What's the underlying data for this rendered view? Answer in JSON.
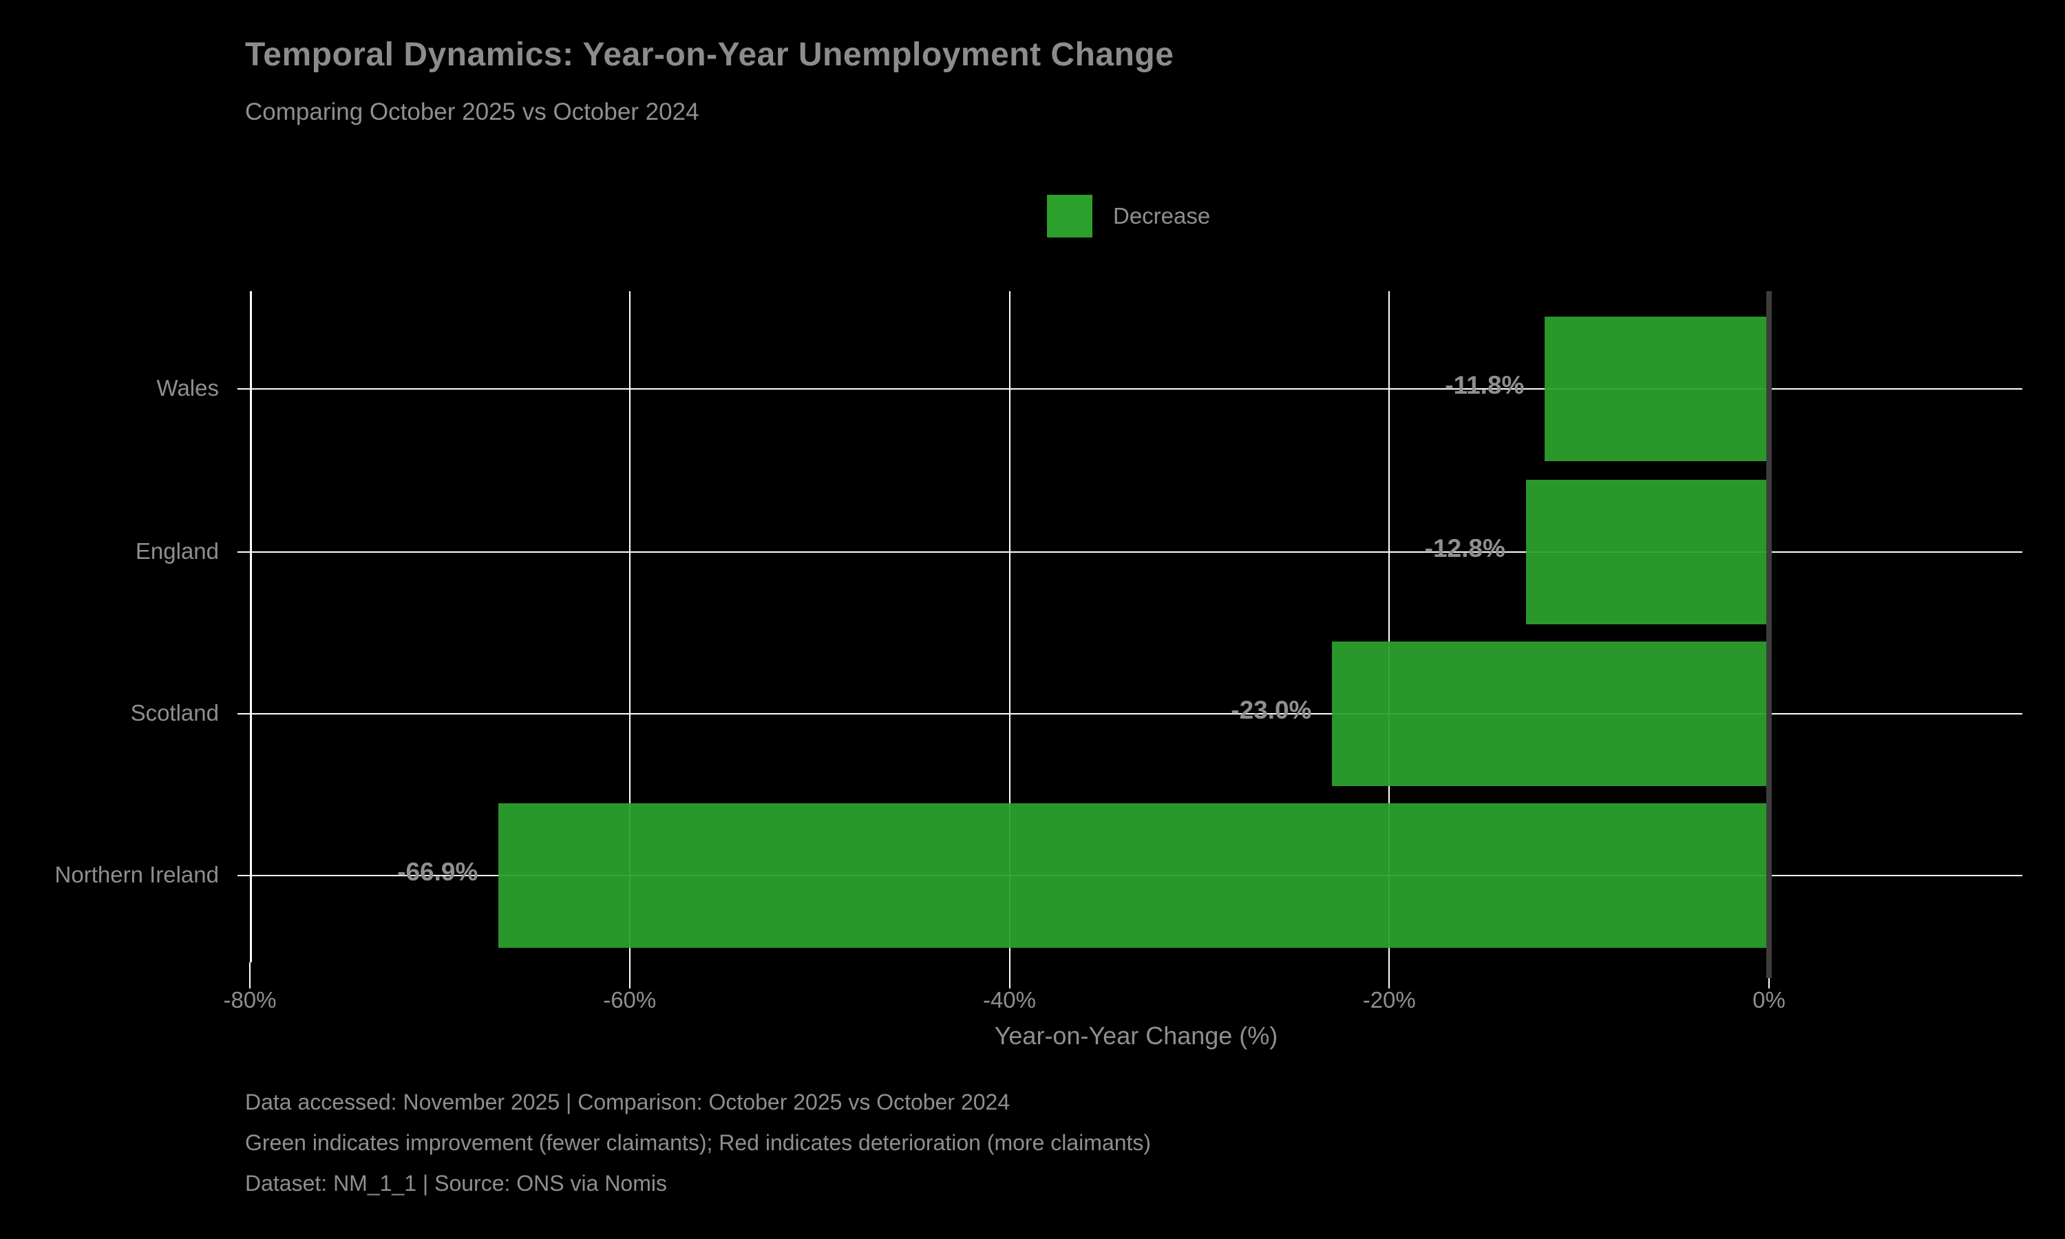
{
  "title": "Temporal Dynamics: Year-on-Year Unemployment Change",
  "subtitle": "Comparing October 2025 vs October 2024",
  "legend": {
    "label": "Decrease",
    "swatch_color": "#2ca02c"
  },
  "chart_data": {
    "type": "bar",
    "orientation": "horizontal",
    "categories": [
      "Wales",
      "England",
      "Scotland",
      "Northern Ireland"
    ],
    "values": [
      -11.8,
      -12.8,
      -23.0,
      -66.9
    ],
    "value_labels": [
      "-11.8%",
      "-12.8%",
      "-23.0%",
      "-66.9%"
    ],
    "title": "Temporal Dynamics: Year-on-Year Unemployment Change",
    "subtitle": "Comparing October 2025 vs October 2024",
    "xlabel": "Year-on-Year Change (%)",
    "ylabel": "",
    "xlim": [
      -80,
      0
    ],
    "x_ticks": [
      -80,
      -60,
      -40,
      -20,
      0
    ],
    "x_tick_labels": [
      "-80%",
      "-60%",
      "-40%",
      "-20%",
      "0%"
    ],
    "grid": true,
    "legend_entries": [
      "Decrease"
    ],
    "legend_position": "upper center",
    "bar_color": "#2ca02c"
  },
  "colors": {
    "background": "#000000",
    "bar_green": "#2ca02c",
    "text_gray": "#8f8f8f",
    "title_gray": "#8c8c8c",
    "grid_white": "#ffffff",
    "zero_spine_gray": "#3d3d3d"
  },
  "footer": {
    "line1": "Data accessed: November 2025 | Comparison: October 2025 vs October 2024",
    "line2": "Green indicates improvement (fewer claimants); Red indicates deterioration (more claimants)",
    "line3": "Dataset: NM_1_1 | Source: ONS via Nomis"
  }
}
